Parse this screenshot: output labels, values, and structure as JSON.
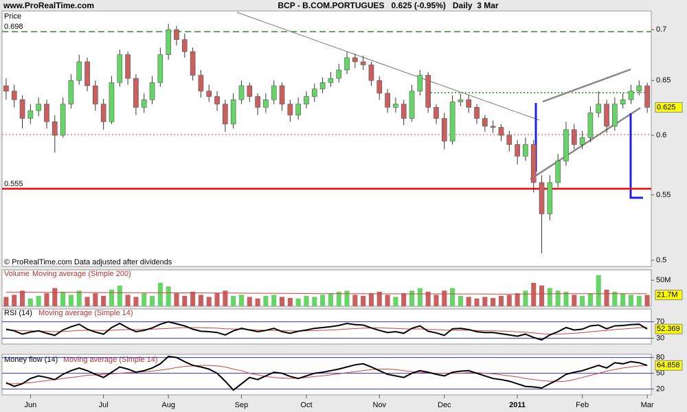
{
  "header": {
    "site": "www.ProRealTime.com",
    "title": "BCP - B.COM.PORTUGUES   0.625 (-0.95%)   Daily  3 Mar"
  },
  "chart_data": [
    {
      "type": "candlestick",
      "title": "Price",
      "note": "© ProRealTime.com  Data adjusted after dividends",
      "categories": [
        null,
        null,
        null,
        "Jun",
        null,
        null,
        null,
        null,
        null,
        null,
        null,
        null,
        "Jul",
        null,
        null,
        null,
        null,
        null,
        null,
        null,
        "Aug",
        null,
        null,
        null,
        null,
        null,
        null,
        null,
        null,
        "Sep",
        null,
        null,
        null,
        null,
        null,
        null,
        null,
        "Oct",
        null,
        null,
        null,
        null,
        null,
        null,
        null,
        null,
        "Nov",
        null,
        null,
        null,
        null,
        null,
        null,
        null,
        "Dec",
        null,
        null,
        null,
        null,
        null,
        null,
        null,
        null,
        "2011",
        null,
        null,
        null,
        null,
        null,
        null,
        null,
        "Feb",
        null,
        null,
        null,
        null,
        null,
        null,
        null,
        "Mar"
      ],
      "ohlc": [
        [
          0.645,
          0.652,
          0.632,
          0.64
        ],
        [
          0.64,
          0.646,
          0.625,
          0.632
        ],
        [
          0.632,
          0.636,
          0.606,
          0.615
        ],
        [
          0.615,
          0.628,
          0.61,
          0.622
        ],
        [
          0.622,
          0.634,
          0.617,
          0.628
        ],
        [
          0.628,
          0.632,
          0.606,
          0.612
        ],
        [
          0.612,
          0.618,
          0.585,
          0.6
        ],
        [
          0.6,
          0.634,
          0.598,
          0.628
        ],
        [
          0.628,
          0.656,
          0.624,
          0.65
        ],
        [
          0.65,
          0.675,
          0.646,
          0.668
        ],
        [
          0.668,
          0.672,
          0.64,
          0.645
        ],
        [
          0.645,
          0.65,
          0.622,
          0.628
        ],
        [
          0.628,
          0.633,
          0.605,
          0.612
        ],
        [
          0.612,
          0.654,
          0.61,
          0.648
        ],
        [
          0.648,
          0.68,
          0.644,
          0.675
        ],
        [
          0.675,
          0.678,
          0.646,
          0.652
        ],
        [
          0.652,
          0.656,
          0.618,
          0.625
        ],
        [
          0.625,
          0.638,
          0.62,
          0.632
        ],
        [
          0.632,
          0.654,
          0.628,
          0.648
        ],
        [
          0.648,
          0.682,
          0.644,
          0.675
        ],
        [
          0.675,
          0.706,
          0.67,
          0.7
        ],
        [
          0.7,
          0.704,
          0.684,
          0.69
        ],
        [
          0.69,
          0.696,
          0.672,
          0.678
        ],
        [
          0.678,
          0.682,
          0.65,
          0.655
        ],
        [
          0.655,
          0.66,
          0.634,
          0.64
        ],
        [
          0.64,
          0.646,
          0.63,
          0.635
        ],
        [
          0.635,
          0.64,
          0.622,
          0.628
        ],
        [
          0.628,
          0.632,
          0.603,
          0.61
        ],
        [
          0.61,
          0.638,
          0.606,
          0.632
        ],
        [
          0.632,
          0.65,
          0.628,
          0.645
        ],
        [
          0.645,
          0.648,
          0.63,
          0.635
        ],
        [
          0.635,
          0.638,
          0.618,
          0.625
        ],
        [
          0.625,
          0.638,
          0.62,
          0.632
        ],
        [
          0.632,
          0.65,
          0.628,
          0.645
        ],
        [
          0.645,
          0.648,
          0.622,
          0.628
        ],
        [
          0.628,
          0.632,
          0.612,
          0.618
        ],
        [
          0.618,
          0.634,
          0.614,
          0.628
        ],
        [
          0.628,
          0.64,
          0.624,
          0.635
        ],
        [
          0.635,
          0.647,
          0.63,
          0.642
        ],
        [
          0.642,
          0.653,
          0.638,
          0.648
        ],
        [
          0.648,
          0.658,
          0.644,
          0.652
        ],
        [
          0.652,
          0.666,
          0.648,
          0.66
        ],
        [
          0.66,
          0.678,
          0.656,
          0.672
        ],
        [
          0.672,
          0.676,
          0.662,
          0.668
        ],
        [
          0.668,
          0.674,
          0.66,
          0.665
        ],
        [
          0.665,
          0.668,
          0.645,
          0.65
        ],
        [
          0.65,
          0.654,
          0.632,
          0.638
        ],
        [
          0.638,
          0.642,
          0.62,
          0.625
        ],
        [
          0.625,
          0.634,
          0.62,
          0.628
        ],
        [
          0.628,
          0.632,
          0.609,
          0.615
        ],
        [
          0.615,
          0.646,
          0.612,
          0.64
        ],
        [
          0.64,
          0.66,
          0.636,
          0.655
        ],
        [
          0.655,
          0.658,
          0.62,
          0.625
        ],
        [
          0.625,
          0.628,
          0.61,
          0.615
        ],
        [
          0.615,
          0.62,
          0.588,
          0.595
        ],
        [
          0.595,
          0.636,
          0.592,
          0.63
        ],
        [
          0.63,
          0.638,
          0.626,
          0.632
        ],
        [
          0.632,
          0.636,
          0.62,
          0.625
        ],
        [
          0.625,
          0.628,
          0.61,
          0.615
        ],
        [
          0.615,
          0.618,
          0.603,
          0.608
        ],
        [
          0.608,
          0.613,
          0.602,
          0.607
        ],
        [
          0.607,
          0.61,
          0.595,
          0.6
        ],
        [
          0.6,
          0.604,
          0.586,
          0.592
        ],
        [
          0.592,
          0.596,
          0.575,
          0.582
        ],
        [
          0.582,
          0.598,
          0.578,
          0.592
        ],
        [
          0.592,
          0.596,
          0.552,
          0.56
        ],
        [
          0.56,
          0.566,
          0.505,
          0.535
        ],
        [
          0.535,
          0.566,
          0.53,
          0.56
        ],
        [
          0.56,
          0.584,
          0.556,
          0.578
        ],
        [
          0.578,
          0.612,
          0.574,
          0.605
        ],
        [
          0.605,
          0.61,
          0.588,
          0.592
        ],
        [
          0.592,
          0.604,
          0.588,
          0.598
        ],
        [
          0.598,
          0.626,
          0.594,
          0.62
        ],
        [
          0.62,
          0.64,
          0.616,
          0.628
        ],
        [
          0.628,
          0.632,
          0.602,
          0.608
        ],
        [
          0.608,
          0.634,
          0.604,
          0.628
        ],
        [
          0.628,
          0.638,
          0.624,
          0.632
        ],
        [
          0.632,
          0.646,
          0.628,
          0.64
        ],
        [
          0.64,
          0.65,
          0.636,
          0.645
        ],
        [
          0.645,
          0.648,
          0.62,
          0.625
        ]
      ],
      "up_color": "#66d466",
      "down_color": "#c86060",
      "log_scale": true,
      "ylim": [
        0.4955,
        0.7194
      ],
      "yticks": [
        0.5,
        0.55,
        0.6,
        0.65,
        0.7
      ],
      "levels": [
        {
          "value": 0.698,
          "color": "#2e8b2e",
          "style": "dashed"
        },
        {
          "value": 0.555,
          "color": "#ff0000",
          "style": "solid"
        }
      ],
      "last_value": 0.625
    },
    {
      "type": "bar",
      "title": "Volume",
      "ma_name": "Moving average (Simple 200)",
      "values": [
        18,
        22,
        30,
        15,
        20,
        25,
        35,
        28,
        22,
        30,
        18,
        25,
        20,
        32,
        40,
        22,
        18,
        25,
        20,
        45,
        38,
        25,
        20,
        28,
        22,
        18,
        25,
        30,
        20,
        22,
        18,
        15,
        20,
        22,
        18,
        16,
        15,
        20,
        18,
        22,
        25,
        28,
        30,
        22,
        20,
        25,
        28,
        22,
        18,
        25,
        30,
        35,
        28,
        22,
        30,
        35,
        20,
        18,
        15,
        18,
        16,
        20,
        22,
        25,
        30,
        45,
        40,
        35,
        30,
        28,
        22,
        20,
        25,
        60,
        32,
        28,
        25,
        22,
        20,
        21.7
      ],
      "ma_values": [
        27,
        27,
        27,
        27,
        26.8,
        26.8,
        26.6,
        26.6,
        26.5,
        26.5,
        26.4,
        26.4,
        26.3,
        26.3,
        26.2,
        26.2,
        26.1,
        26,
        26,
        25.9,
        25.9,
        25.8,
        25.8,
        25.7,
        25.6,
        25.6,
        25.5,
        25.4,
        25.3,
        25.2,
        25.1,
        25,
        24.9,
        24.8,
        24.7,
        24.6,
        24.5,
        24.4,
        24.3,
        24.2,
        24.2,
        24.1,
        24.1,
        24,
        24,
        24,
        23.9,
        23.9,
        23.9,
        23.8,
        23.8,
        23.8,
        23.8,
        23.8,
        23.8,
        23.8,
        23.7,
        23.7,
        23.6,
        23.6,
        23.5,
        23.5,
        23.5,
        23.5,
        23.6,
        23.7,
        23.8,
        23.9,
        24,
        24,
        24,
        24,
        24,
        24.2,
        24.2,
        24.2,
        24.2,
        24.2,
        24.2,
        24.2
      ],
      "up_color": "#66d466",
      "down_color": "#c86060",
      "ma_color": "#d04040",
      "ylim": [
        0,
        70
      ],
      "yticks": [
        {
          "value": 50,
          "label": "50M"
        }
      ],
      "grid": false,
      "last_value": {
        "value": 21.7,
        "label": "21.7M"
      }
    },
    {
      "type": "line",
      "title": "RSI (14)",
      "ma_name": "Moving average (Simple 14)",
      "values": [
        52,
        48,
        40,
        45,
        48,
        42,
        37,
        50,
        58,
        64,
        52,
        45,
        40,
        56,
        66,
        55,
        46,
        49,
        55,
        64,
        70,
        65,
        60,
        52,
        47,
        46,
        44,
        38,
        48,
        54,
        50,
        46,
        49,
        54,
        46,
        42,
        47,
        50,
        54,
        56,
        58,
        61,
        66,
        63,
        62,
        55,
        49,
        44,
        46,
        42,
        54,
        60,
        47,
        43,
        37,
        53,
        54,
        51,
        46,
        44,
        44,
        41,
        38,
        35,
        40,
        32,
        26,
        38,
        46,
        56,
        50,
        52,
        60,
        62,
        53,
        60,
        61,
        63,
        64,
        52.4
      ],
      "ma_values": [
        50,
        49.5,
        48.5,
        48,
        47.5,
        46.8,
        46,
        46.5,
        47.5,
        49,
        49.5,
        49.2,
        49,
        49.5,
        50.5,
        51,
        51,
        51.5,
        52,
        53,
        54,
        55,
        56,
        56,
        55.5,
        55,
        54.5,
        53,
        52.5,
        52,
        51,
        50,
        49.5,
        49,
        48.5,
        48,
        47.5,
        48,
        48.5,
        49.5,
        50,
        51,
        52.5,
        53.5,
        54.5,
        55,
        55,
        54.5,
        54,
        53,
        52.5,
        52.5,
        51.5,
        51,
        50,
        49.5,
        49.5,
        49.5,
        49,
        48.5,
        48,
        47.5,
        47,
        45.5,
        44.5,
        43,
        41,
        40,
        40,
        41,
        42,
        43.5,
        45.5,
        47.5,
        49,
        51,
        52.5,
        54,
        55.5,
        56.5
      ],
      "color": "#000000",
      "ma_color": "#d04040",
      "grid_color": "#3030c0",
      "ylim": [
        16,
        101
      ],
      "yticks": [
        30,
        70
      ],
      "grid": true,
      "last_value": 52.369
    },
    {
      "type": "line",
      "title": "Money flow (14)",
      "ma_name": "Moving average (Simple 14)",
      "values": [
        32,
        25,
        30,
        40,
        45,
        42,
        38,
        48,
        55,
        60,
        55,
        48,
        42,
        52,
        62,
        58,
        52,
        55,
        60,
        68,
        82,
        80,
        72,
        65,
        62,
        58,
        50,
        35,
        18,
        30,
        42,
        38,
        45,
        52,
        50,
        44,
        40,
        45,
        50,
        52,
        55,
        58,
        62,
        66,
        68,
        62,
        55,
        48,
        45,
        42,
        50,
        55,
        52,
        48,
        45,
        52,
        54,
        55,
        50,
        45,
        40,
        38,
        35,
        30,
        25,
        24,
        22,
        30,
        38,
        48,
        52,
        55,
        60,
        65,
        60,
        70,
        68,
        72,
        70,
        64.9
      ],
      "ma_values": [
        30,
        30,
        31,
        32,
        34,
        36,
        38,
        40,
        42,
        44,
        46,
        47,
        48,
        49,
        50,
        51,
        52,
        53,
        54,
        56,
        58,
        61,
        63,
        64,
        65,
        65,
        64,
        62,
        58,
        55,
        50,
        47,
        44,
        42,
        41,
        40,
        41,
        42,
        44,
        45,
        47,
        49,
        51,
        53,
        55,
        57,
        58,
        58,
        57,
        55,
        53,
        52,
        51,
        50,
        50,
        50,
        50,
        51,
        51,
        50,
        49,
        47,
        45,
        43,
        40,
        38,
        36,
        35,
        34,
        35,
        38,
        42,
        46,
        50,
        54,
        57,
        60,
        62,
        64,
        65
      ],
      "color": "#000000",
      "ma_color": "#d04040",
      "grid_color": "#3030c0",
      "ylim": [
        9,
        86
      ],
      "yticks": [
        20,
        50,
        80
      ],
      "grid": true,
      "last_value": 64.858
    }
  ]
}
